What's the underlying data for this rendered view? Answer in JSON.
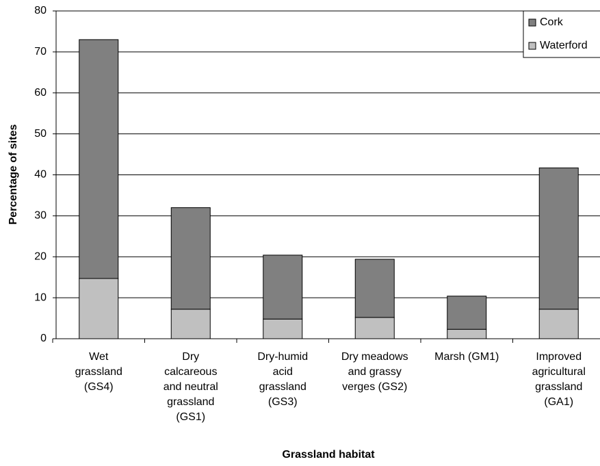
{
  "chart_data": {
    "type": "stacked_bar",
    "xlabel": "Grassland habitat",
    "ylabel": "Percentage of sites",
    "categories": [
      "Wet\ngrassland\n(GS4)",
      "Dry\ncalcareous\nand neutral\ngrassland\n(GS1)",
      "Dry-humid\nacid\ngrassland\n(GS3)",
      "Dry meadows\nand grassy\nverges (GS2)",
      "Marsh (GM1)",
      "Improved\nagricultural\ngrassland\n(GA1)"
    ],
    "series": [
      {
        "name": "Waterford",
        "color": "#c0c0c0",
        "values": [
          14.7,
          7.2,
          4.8,
          5.2,
          2.3,
          7.2
        ]
      },
      {
        "name": "Cork",
        "color": "#808080",
        "values": [
          58.3,
          24.8,
          15.6,
          14.2,
          8.1,
          34.5
        ]
      }
    ],
    "legend_order": [
      1,
      0
    ],
    "legend": "upper right",
    "ylim": [
      0,
      80
    ],
    "yticks": [
      0,
      10,
      20,
      30,
      40,
      50,
      60,
      70,
      80
    ],
    "grid": true
  }
}
